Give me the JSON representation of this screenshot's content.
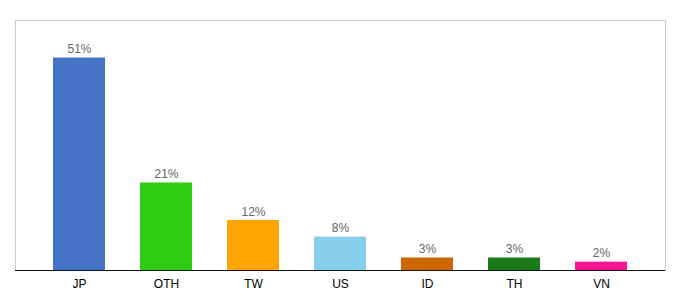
{
  "chart_data": {
    "type": "bar",
    "categories": [
      "JP",
      "OTH",
      "TW",
      "US",
      "ID",
      "TH",
      "VN"
    ],
    "values": [
      51,
      21,
      12,
      8,
      3,
      3,
      2
    ],
    "value_labels": [
      "51%",
      "21%",
      "12%",
      "8%",
      "3%",
      "3%",
      "2%"
    ],
    "colors": [
      "#4472C4",
      "#2ECC10",
      "#FFA500",
      "#87CEEB",
      "#CC6600",
      "#1A7A1A",
      "#FF1493"
    ],
    "ylim": [
      0,
      60
    ],
    "data_labels": true,
    "tick_labels": "x",
    "grid": false
  }
}
